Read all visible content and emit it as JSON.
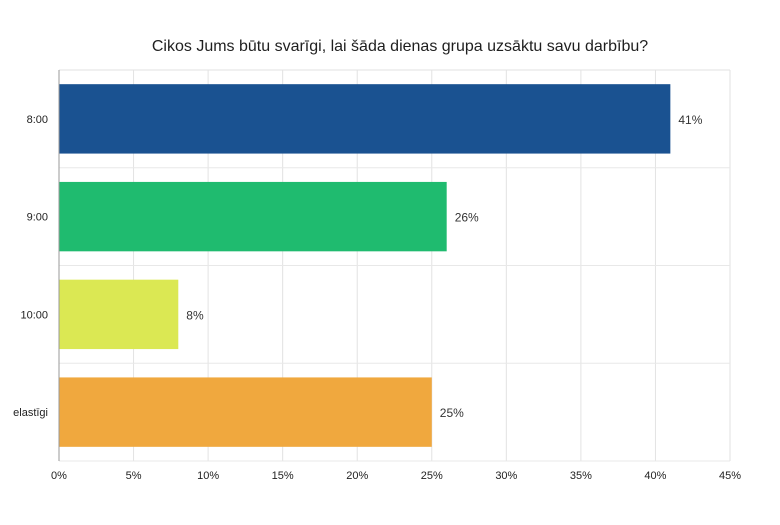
{
  "chart_data": {
    "type": "bar",
    "orientation": "horizontal",
    "title": "Cikos Jums būtu svarīgi, lai šāda dienas grupa uzsāktu savu darbību?",
    "categories": [
      "8:00",
      "9:00",
      "10:00",
      "elastīgi"
    ],
    "values": [
      41,
      26,
      8,
      25
    ],
    "value_labels": [
      "41%",
      "26%",
      "8%",
      "25%"
    ],
    "colors": [
      "#1a5291",
      "#1fbb6f",
      "#dbe853",
      "#f0a83e"
    ],
    "xlim": [
      0,
      45
    ],
    "xticks": [
      0,
      5,
      10,
      15,
      20,
      25,
      30,
      35,
      40,
      45
    ],
    "xtick_labels": [
      "0%",
      "5%",
      "10%",
      "15%",
      "20%",
      "25%",
      "30%",
      "35%",
      "40%",
      "45%"
    ],
    "xlabel": "",
    "ylabel": "",
    "grid": true,
    "legend": "none"
  }
}
